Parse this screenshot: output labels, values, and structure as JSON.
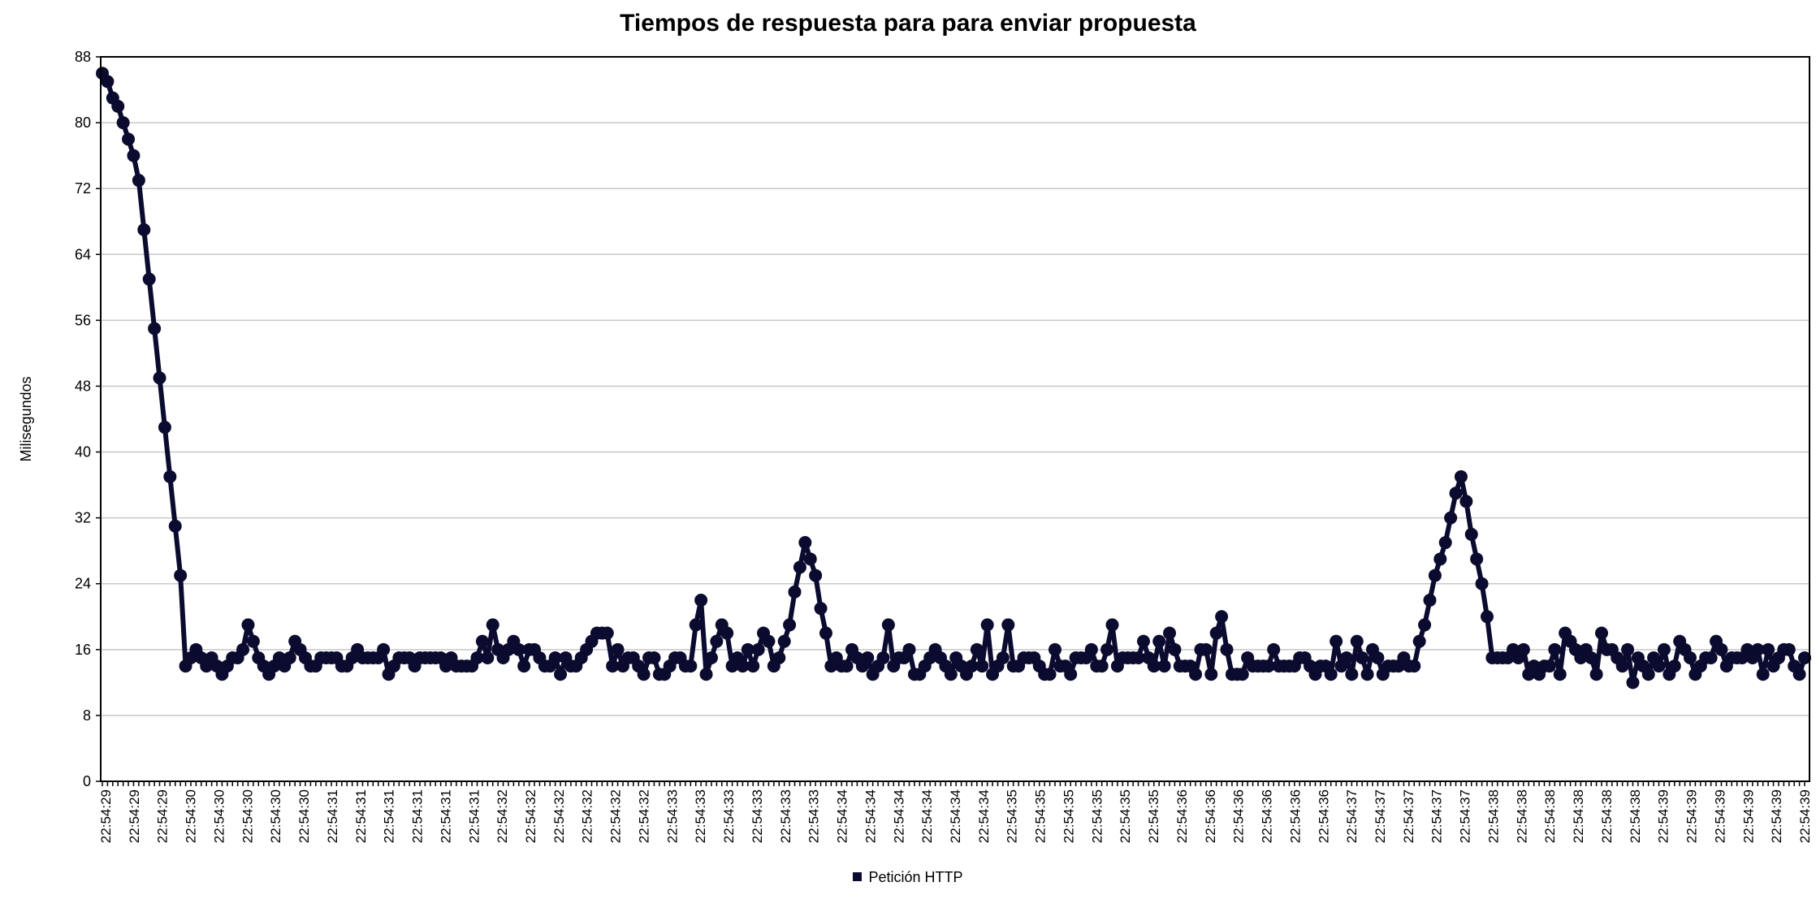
{
  "chart_data": {
    "type": "line",
    "title": "Tiempos de respuesta para para enviar propuesta",
    "xlabel": "",
    "ylabel": "Milisegundos",
    "ylim": [
      0,
      88
    ],
    "yticks": [
      0,
      8,
      16,
      24,
      32,
      40,
      48,
      56,
      64,
      72,
      80,
      88
    ],
    "grid": true,
    "legend_position": "bottom",
    "series_color": "#0b0b30",
    "tick_labels": [
      "22:54:29",
      "22:54:29",
      "22:54:29",
      "22:54:30",
      "22:54:30",
      "22:54:30",
      "22:54:30",
      "22:54:30",
      "22:54:31",
      "22:54:31",
      "22:54:31",
      "22:54:31",
      "22:54:31",
      "22:54:31",
      "22:54:32",
      "22:54:32",
      "22:54:32",
      "22:54:32",
      "22:54:32",
      "22:54:32",
      "22:54:33",
      "22:54:33",
      "22:54:33",
      "22:54:33",
      "22:54:33",
      "22:54:33",
      "22:54:34",
      "22:54:34",
      "22:54:34",
      "22:54:34",
      "22:54:34",
      "22:54:34",
      "22:54:35",
      "22:54:35",
      "22:54:35",
      "22:54:35",
      "22:54:35",
      "22:54:35",
      "22:54:36",
      "22:54:36",
      "22:54:36",
      "22:54:36",
      "22:54:36",
      "22:54:36",
      "22:54:37",
      "22:54:37",
      "22:54:37",
      "22:54:37",
      "22:54:37",
      "22:54:38",
      "22:54:38",
      "22:54:38",
      "22:54:38",
      "22:54:38",
      "22:54:38",
      "22:54:39",
      "22:54:39",
      "22:54:39",
      "22:54:39",
      "22:54:39",
      "22:54:39"
    ],
    "series": [
      {
        "name": "Petición HTTP",
        "values": [
          86,
          85,
          83,
          82,
          80,
          78,
          76,
          73,
          67,
          61,
          55,
          49,
          43,
          37,
          31,
          25,
          14,
          15,
          16,
          15,
          14,
          15,
          14,
          13,
          14,
          15,
          15,
          16,
          19,
          17,
          15,
          14,
          13,
          14,
          15,
          14,
          15,
          17,
          16,
          15,
          14,
          14,
          15,
          15,
          15,
          15,
          14,
          14,
          15,
          16,
          15,
          15,
          15,
          15,
          16,
          13,
          14,
          15,
          15,
          15,
          14,
          15,
          15,
          15,
          15,
          15,
          14,
          15,
          14,
          14,
          14,
          14,
          15,
          17,
          15,
          19,
          16,
          15,
          16,
          17,
          16,
          14,
          16,
          16,
          15,
          14,
          14,
          15,
          13,
          15,
          14,
          14,
          15,
          16,
          17,
          18,
          18,
          18,
          14,
          16,
          14,
          15,
          15,
          14,
          13,
          15,
          15,
          13,
          13,
          14,
          15,
          15,
          14,
          14,
          19,
          22,
          13,
          15,
          17,
          19,
          18,
          14,
          15,
          14,
          16,
          14,
          16,
          18,
          17,
          14,
          15,
          17,
          19,
          23,
          26,
          29,
          27,
          25,
          21,
          18,
          14,
          15,
          14,
          14,
          16,
          15,
          14,
          15,
          13,
          14,
          15,
          19,
          14,
          15,
          15,
          16,
          13,
          13,
          14,
          15,
          16,
          15,
          14,
          13,
          15,
          14,
          13,
          14,
          16,
          14,
          19,
          13,
          14,
          15,
          19,
          14,
          14,
          15,
          15,
          15,
          14,
          13,
          13,
          16,
          14,
          14,
          13,
          15,
          15,
          15,
          16,
          14,
          14,
          16,
          19,
          14,
          15,
          15,
          15,
          15,
          17,
          15,
          14,
          17,
          14,
          18,
          16,
          14,
          14,
          14,
          13,
          16,
          16,
          13,
          18,
          20,
          16,
          13,
          13,
          13,
          15,
          14,
          14,
          14,
          14,
          16,
          14,
          14,
          14,
          14,
          15,
          15,
          14,
          13,
          14,
          14,
          13,
          17,
          14,
          15,
          13,
          17,
          15,
          13,
          16,
          15,
          13,
          14,
          14,
          14,
          15,
          14,
          14,
          17,
          19,
          22,
          25,
          27,
          29,
          32,
          35,
          37,
          34,
          30,
          27,
          24,
          20,
          15,
          15,
          15,
          15,
          16,
          15,
          16,
          13,
          14,
          13,
          14,
          14,
          16,
          13,
          18,
          17,
          16,
          15,
          16,
          15,
          13,
          18,
          16,
          16,
          15,
          14,
          16,
          12,
          15,
          14,
          13,
          15,
          14,
          16,
          13,
          14,
          17,
          16,
          15,
          13,
          14,
          15,
          15,
          17,
          16,
          14,
          15,
          15,
          15,
          16,
          15,
          16,
          13,
          16,
          14,
          15,
          16,
          16,
          14,
          13,
          15
        ]
      }
    ]
  }
}
